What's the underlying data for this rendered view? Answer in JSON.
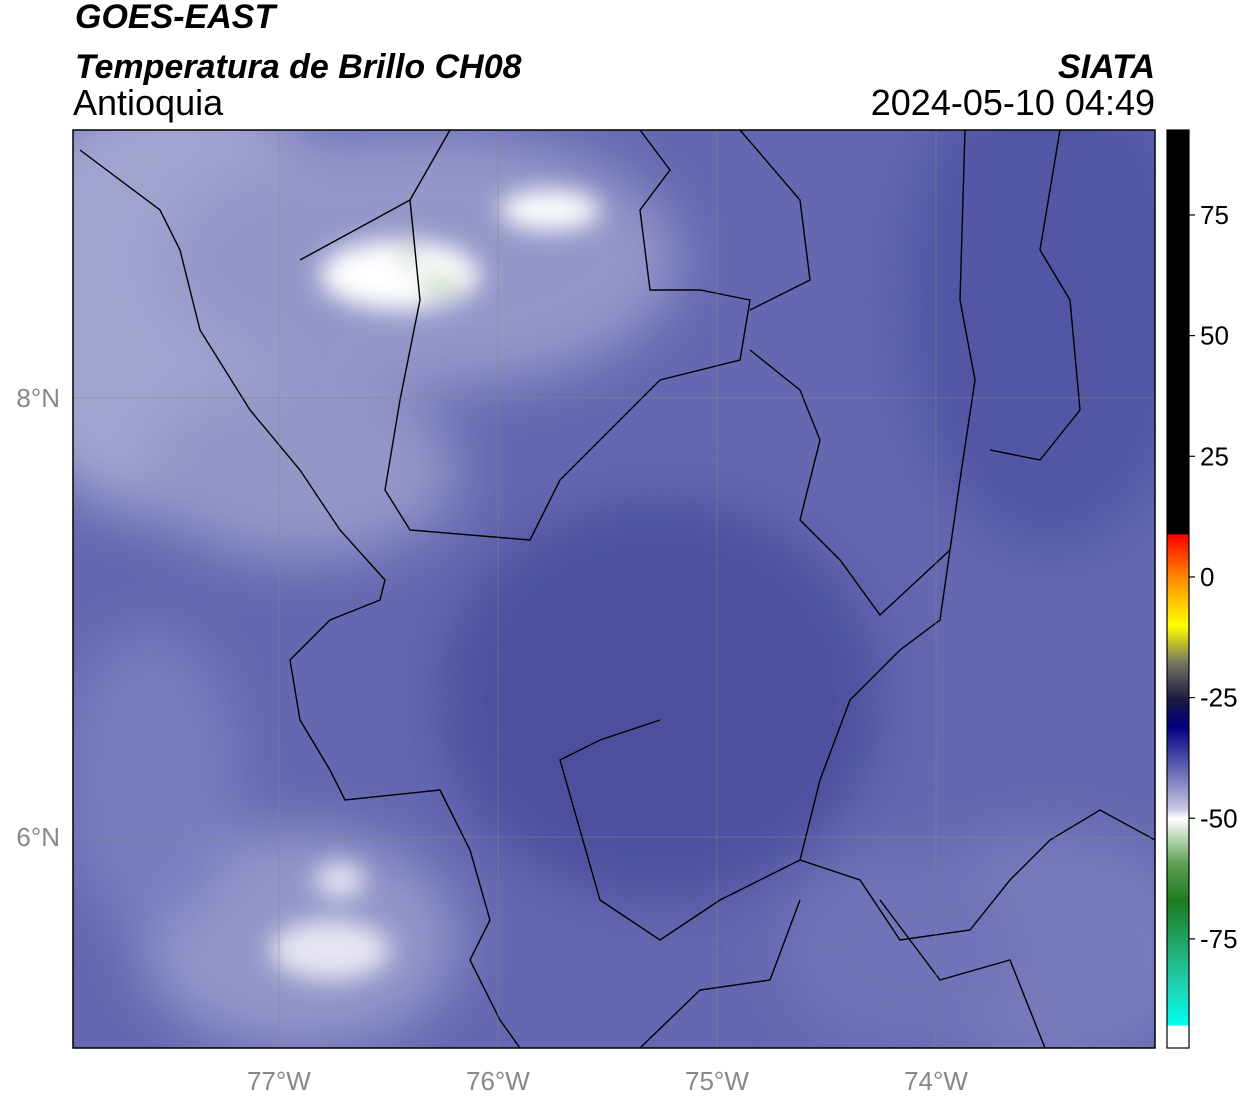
{
  "header": {
    "source": "GOES-EAST",
    "product": "Temperatura de Brillo CH08",
    "region": "Antioquia",
    "agency": "SIATA",
    "datetime": "2024-05-10 04:49"
  },
  "map": {
    "xlim": [
      -77.94,
      -73.0
    ],
    "ylim": [
      5.04,
      9.22
    ],
    "xticks": [
      {
        "value": -77,
        "label": "77°W"
      },
      {
        "value": -76,
        "label": "76°W"
      },
      {
        "value": -75,
        "label": "75°W"
      },
      {
        "value": -74,
        "label": "74°W"
      }
    ],
    "yticks": [
      {
        "value": 8,
        "label": "8°N"
      },
      {
        "value": 6,
        "label": "6°N"
      }
    ],
    "grid": true
  },
  "colorbar": {
    "lim": [
      -97.6,
      92.6
    ],
    "ticks": [
      75,
      50,
      25,
      0,
      -25,
      -50,
      -75
    ]
  }
}
